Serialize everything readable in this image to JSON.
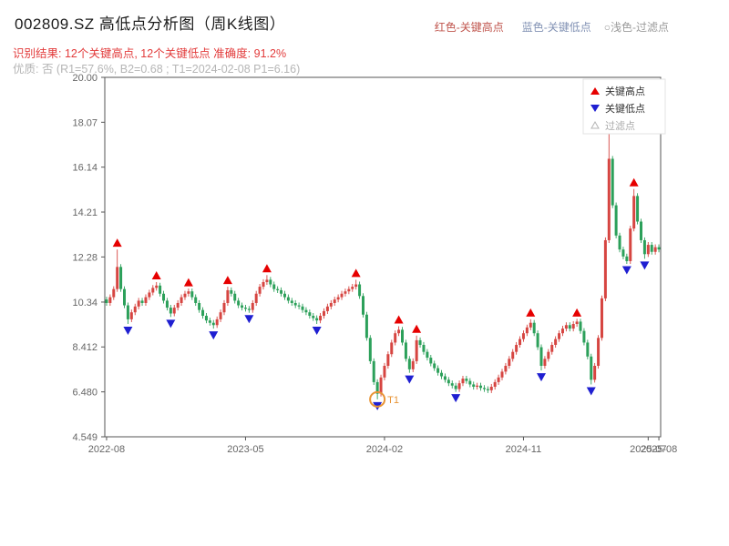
{
  "header": {
    "title": "002809.SZ 高低点分析图（周K线图）",
    "legend_high": "红色-关键高点",
    "legend_low": "蓝色-关键低点",
    "legend_filter": "○浅色-过滤点",
    "result_line": "识别结果: 12个关键高点, 12个关键低点  准确度: 91.2%",
    "quality_line": "优质: 否 (R1=57.6%, B2=0.68 ; T1=2024-02-08 P1=6.16)"
  },
  "chart_data": {
    "type": "candlestick",
    "title": "002809.SZ 高低点分析图（周K线图）",
    "ylim": [
      4.549,
      20.0
    ],
    "y_ticks": [
      20.0,
      18.07,
      16.14,
      14.21,
      12.28,
      10.34,
      8.412,
      6.48,
      4.549
    ],
    "y_tick_labels": [
      "20.00",
      "18.07",
      "16.14",
      "14.21",
      "12.28",
      "10.34",
      "8.412",
      "6.480",
      "4.549"
    ],
    "x_ticks": [
      {
        "week": 0,
        "label": "2022-08"
      },
      {
        "week": 39,
        "label": "2023-05"
      },
      {
        "week": 78,
        "label": "2024-02"
      },
      {
        "week": 117,
        "label": "2024-11"
      },
      {
        "week": 152,
        "label": "2025-07"
      },
      {
        "week": 155,
        "label": "2025-08"
      }
    ],
    "weeks": 156,
    "closes": [
      10.3,
      10.55,
      10.9,
      11.85,
      10.9,
      10.2,
      9.6,
      9.9,
      10.15,
      10.4,
      10.3,
      10.55,
      10.75,
      10.95,
      11.05,
      10.7,
      10.4,
      10.1,
      9.85,
      10.1,
      10.3,
      10.55,
      10.7,
      10.8,
      10.55,
      10.3,
      10.0,
      9.75,
      9.55,
      9.45,
      9.35,
      9.6,
      9.9,
      10.3,
      10.85,
      10.7,
      10.4,
      10.2,
      10.1,
      10.05,
      10.0,
      10.3,
      10.7,
      11.0,
      11.2,
      11.3,
      11.1,
      10.9,
      10.85,
      10.7,
      10.55,
      10.4,
      10.3,
      10.2,
      10.15,
      10.0,
      9.9,
      9.75,
      9.65,
      9.55,
      9.75,
      9.95,
      10.15,
      10.3,
      10.45,
      10.55,
      10.7,
      10.8,
      10.9,
      11.0,
      11.1,
      10.6,
      9.8,
      8.8,
      7.8,
      6.9,
      6.4,
      7.1,
      7.6,
      8.1,
      8.6,
      9.0,
      9.15,
      8.6,
      7.9,
      7.45,
      7.8,
      8.7,
      8.5,
      8.2,
      7.95,
      7.7,
      7.5,
      7.3,
      7.15,
      7.0,
      6.85,
      6.75,
      6.6,
      6.85,
      7.05,
      6.95,
      6.8,
      6.7,
      6.75,
      6.65,
      6.6,
      6.55,
      6.7,
      6.9,
      7.1,
      7.35,
      7.6,
      7.9,
      8.2,
      8.5,
      8.75,
      9.0,
      9.25,
      9.45,
      9.0,
      8.4,
      7.6,
      7.9,
      8.2,
      8.5,
      8.75,
      9.0,
      9.2,
      9.35,
      9.2,
      9.4,
      9.5,
      9.1,
      8.6,
      8.0,
      7.0,
      7.6,
      8.8,
      10.5,
      13.0,
      16.5,
      14.5,
      13.2,
      12.6,
      12.3,
      12.1,
      13.5,
      14.9,
      13.8,
      13.0,
      12.4,
      12.8,
      12.5,
      12.7,
      12.6
    ],
    "key_highs": [
      {
        "week": 3,
        "price": 12.6
      },
      {
        "week": 14,
        "price": 11.2
      },
      {
        "week": 23,
        "price": 10.9
      },
      {
        "week": 34,
        "price": 11.0
      },
      {
        "week": 45,
        "price": 11.5
      },
      {
        "week": 70,
        "price": 11.3
      },
      {
        "week": 82,
        "price": 9.3
      },
      {
        "week": 87,
        "price": 8.9
      },
      {
        "week": 119,
        "price": 9.6
      },
      {
        "week": 132,
        "price": 9.6
      },
      {
        "week": 141,
        "price": 18.3
      },
      {
        "week": 148,
        "price": 15.2
      }
    ],
    "key_lows": [
      {
        "week": 6,
        "price": 9.4
      },
      {
        "week": 18,
        "price": 9.7
      },
      {
        "week": 30,
        "price": 9.2
      },
      {
        "week": 40,
        "price": 9.9
      },
      {
        "week": 59,
        "price": 9.4
      },
      {
        "week": 76,
        "price": 6.16
      },
      {
        "week": 85,
        "price": 7.3
      },
      {
        "week": 98,
        "price": 6.5
      },
      {
        "week": 122,
        "price": 7.4
      },
      {
        "week": 136,
        "price": 6.8
      },
      {
        "week": 146,
        "price": 12.0
      },
      {
        "week": 151,
        "price": 12.2
      }
    ],
    "t1": {
      "week": 76,
      "price": 6.16,
      "label": "T1",
      "date": "2024-02-08"
    },
    "legend": [
      {
        "label": "关键高点",
        "marker": "up-triangle",
        "color": "#e60000"
      },
      {
        "label": "关键低点",
        "marker": "down-triangle",
        "color": "#1f1fd1"
      },
      {
        "label": "过滤点",
        "marker": "hollow-triangle",
        "color": "#b5b5b5"
      }
    ],
    "colors": {
      "up": "#d64541",
      "down": "#2ca05a",
      "key_high": "#e60000",
      "key_low": "#1f1fd1",
      "annotation": "#e89435"
    }
  }
}
